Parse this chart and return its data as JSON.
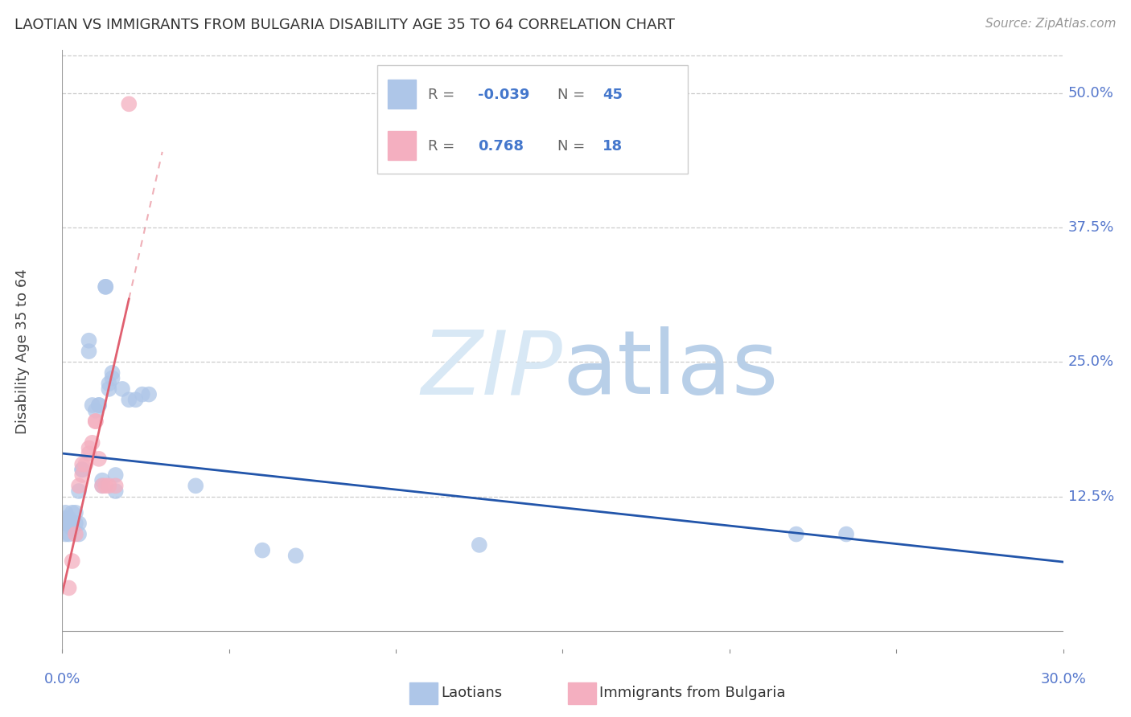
{
  "title": "LAOTIAN VS IMMIGRANTS FROM BULGARIA DISABILITY AGE 35 TO 64 CORRELATION CHART",
  "source": "Source: ZipAtlas.com",
  "ylabel": "Disability Age 35 to 64",
  "xlim": [
    0.0,
    0.3
  ],
  "ylim": [
    -0.02,
    0.54
  ],
  "yticks": [
    0.125,
    0.25,
    0.375,
    0.5
  ],
  "ytick_labels": [
    "12.5%",
    "25.0%",
    "37.5%",
    "50.0%"
  ],
  "grid_color": "#cccccc",
  "background_color": "#ffffff",
  "laotian_color": "#aec6e8",
  "bulgaria_color": "#f4afc0",
  "laotian_line_color": "#2255aa",
  "bulgaria_line_color": "#e06070",
  "watermark_color": "#d8e8f5",
  "laotian_pts": [
    [
      0.001,
      0.1
    ],
    [
      0.001,
      0.11
    ],
    [
      0.001,
      0.105
    ],
    [
      0.001,
      0.09
    ],
    [
      0.002,
      0.1
    ],
    [
      0.002,
      0.09
    ],
    [
      0.002,
      0.1
    ],
    [
      0.002,
      0.105
    ],
    [
      0.003,
      0.1
    ],
    [
      0.003,
      0.095
    ],
    [
      0.003,
      0.11
    ],
    [
      0.004,
      0.1
    ],
    [
      0.004,
      0.11
    ],
    [
      0.005,
      0.13
    ],
    [
      0.005,
      0.1
    ],
    [
      0.005,
      0.09
    ],
    [
      0.006,
      0.15
    ],
    [
      0.006,
      0.15
    ],
    [
      0.008,
      0.26
    ],
    [
      0.008,
      0.27
    ],
    [
      0.009,
      0.21
    ],
    [
      0.01,
      0.205
    ],
    [
      0.011,
      0.21
    ],
    [
      0.011,
      0.21
    ],
    [
      0.012,
      0.14
    ],
    [
      0.012,
      0.135
    ],
    [
      0.013,
      0.32
    ],
    [
      0.013,
      0.32
    ],
    [
      0.014,
      0.225
    ],
    [
      0.014,
      0.23
    ],
    [
      0.015,
      0.235
    ],
    [
      0.015,
      0.24
    ],
    [
      0.016,
      0.145
    ],
    [
      0.016,
      0.13
    ],
    [
      0.018,
      0.225
    ],
    [
      0.02,
      0.215
    ],
    [
      0.022,
      0.215
    ],
    [
      0.024,
      0.22
    ],
    [
      0.026,
      0.22
    ],
    [
      0.04,
      0.135
    ],
    [
      0.06,
      0.075
    ],
    [
      0.125,
      0.08
    ],
    [
      0.22,
      0.09
    ],
    [
      0.235,
      0.09
    ],
    [
      0.07,
      0.07
    ]
  ],
  "bulgaria_pts": [
    [
      0.002,
      0.04
    ],
    [
      0.003,
      0.065
    ],
    [
      0.004,
      0.09
    ],
    [
      0.005,
      0.135
    ],
    [
      0.006,
      0.145
    ],
    [
      0.006,
      0.155
    ],
    [
      0.007,
      0.155
    ],
    [
      0.008,
      0.165
    ],
    [
      0.008,
      0.17
    ],
    [
      0.009,
      0.175
    ],
    [
      0.01,
      0.195
    ],
    [
      0.01,
      0.195
    ],
    [
      0.011,
      0.16
    ],
    [
      0.012,
      0.135
    ],
    [
      0.013,
      0.135
    ],
    [
      0.014,
      0.135
    ],
    [
      0.016,
      0.135
    ],
    [
      0.02,
      0.49
    ]
  ],
  "laotian_R": -0.039,
  "laotian_N": 45,
  "bulgaria_R": 0.768,
  "bulgaria_N": 18
}
